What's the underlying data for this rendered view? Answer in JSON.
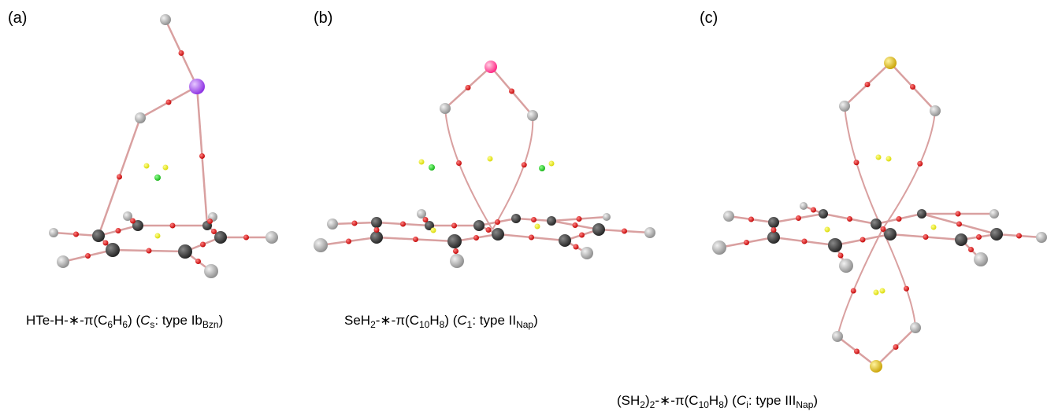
{
  "panels": [
    {
      "label": "(a)",
      "caption": [
        "HTe-H-∗-π(C",
        "6",
        "H",
        "6",
        ") (",
        "C",
        "s",
        ": type Ib",
        "Bzn",
        ")"
      ]
    },
    {
      "label": "(b)",
      "caption": [
        "SeH",
        "2",
        "-∗-π(C",
        "10",
        "H",
        "8",
        ") (",
        "C",
        "1",
        ": type II",
        "Nap",
        ")"
      ]
    },
    {
      "label": "(c)",
      "caption": [
        "(SH",
        "2",
        ")",
        "2",
        "-∗-π(C",
        "10",
        "H",
        "8",
        ") (",
        "C",
        "i",
        ": type III",
        "Nap",
        ")"
      ]
    }
  ]
}
